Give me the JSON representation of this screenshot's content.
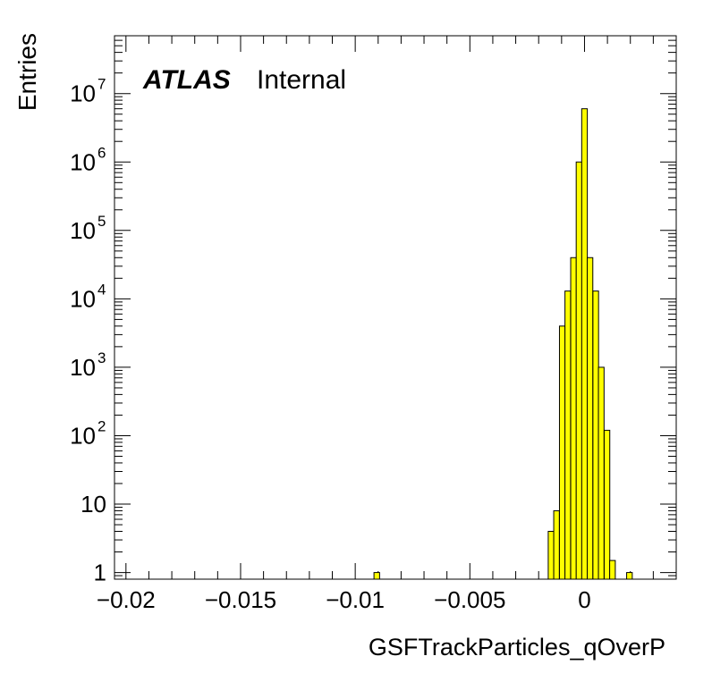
{
  "chart_data": {
    "type": "bar",
    "histogram": true,
    "xlabel": "GSFTrackParticles_qOverP",
    "ylabel": "Entries",
    "yscale": "log",
    "xlim": [
      -0.0205,
      0.004
    ],
    "ylim": [
      0.8,
      70000000
    ],
    "fill_color": "#ffff00",
    "edge_color": "#000000",
    "atlas_label": {
      "bold": "ATLAS",
      "text": "Internal"
    },
    "x_ticks": [
      {
        "value": -0.02,
        "label": "−0.02"
      },
      {
        "value": -0.015,
        "label": "−0.015"
      },
      {
        "value": -0.01,
        "label": "−0.01"
      },
      {
        "value": -0.005,
        "label": "−0.005"
      },
      {
        "value": 0,
        "label": "0"
      }
    ],
    "y_ticks": [
      {
        "value": 1,
        "base": "1",
        "exp": ""
      },
      {
        "value": 10,
        "base": "10",
        "exp": ""
      },
      {
        "value": 100,
        "base": "10",
        "exp": "2"
      },
      {
        "value": 1000,
        "base": "10",
        "exp": "3"
      },
      {
        "value": 10000,
        "base": "10",
        "exp": "4"
      },
      {
        "value": 100000,
        "base": "10",
        "exp": "5"
      },
      {
        "value": 1000000,
        "base": "10",
        "exp": "6"
      },
      {
        "value": 10000000,
        "base": "10",
        "exp": "7"
      }
    ],
    "bin_width": 0.000245,
    "bins": [
      {
        "x": -0.00906,
        "y": 1
      },
      {
        "x": -0.00146,
        "y": 4
      },
      {
        "x": -0.00122,
        "y": 8
      },
      {
        "x": -0.00097,
        "y": 4000
      },
      {
        "x": -0.00073,
        "y": 13000
      },
      {
        "x": -0.00048,
        "y": 40000
      },
      {
        "x": -0.00024,
        "y": 1000000
      },
      {
        "x": 0.0,
        "y": 6000000
      },
      {
        "x": 0.00024,
        "y": 40000
      },
      {
        "x": 0.00049,
        "y": 13000
      },
      {
        "x": 0.00073,
        "y": 1000
      },
      {
        "x": 0.00098,
        "y": 120
      },
      {
        "x": 0.00122,
        "y": 1.5
      },
      {
        "x": 0.00196,
        "y": 1
      }
    ]
  }
}
